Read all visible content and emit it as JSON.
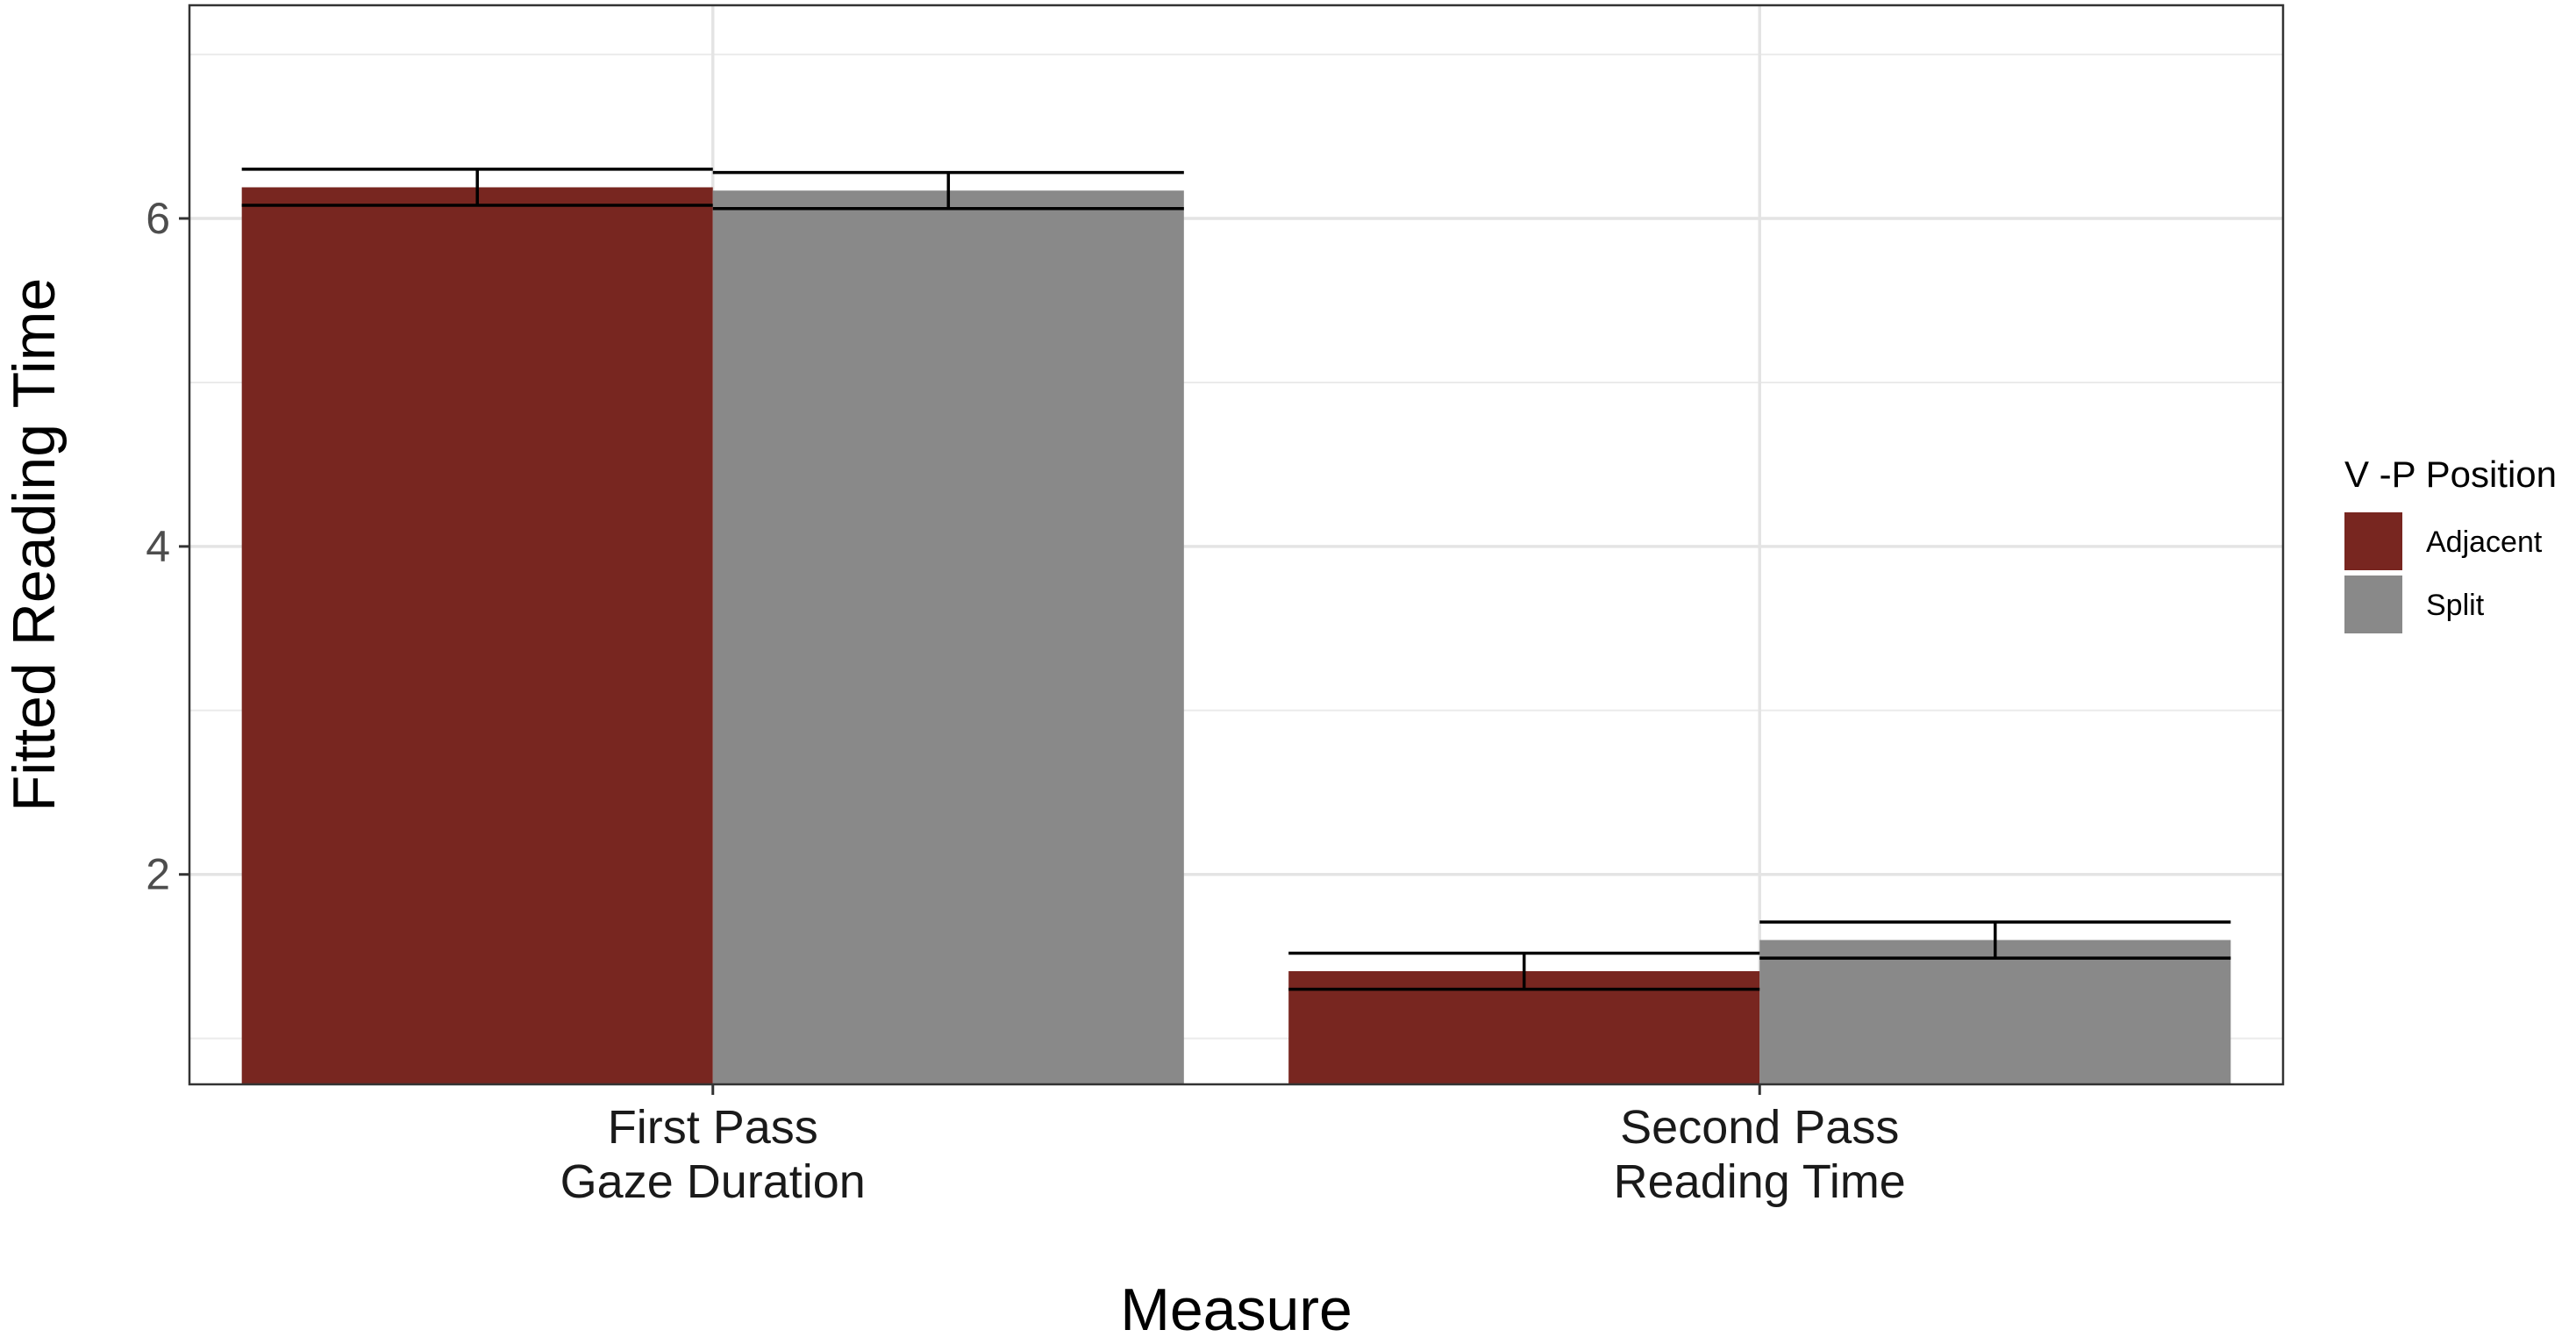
{
  "chart_data": {
    "type": "bar",
    "categories": [
      [
        "First Pass",
        "Gaze Duration"
      ],
      [
        "Second Pass",
        "Reading Time"
      ]
    ],
    "series": [
      {
        "name": "Adjacent",
        "color": "#782620",
        "values": [
          6.19,
          1.41
        ],
        "error_low": [
          6.08,
          1.3
        ],
        "error_high": [
          6.3,
          1.52
        ]
      },
      {
        "name": "Split",
        "color": "#898989",
        "values": [
          6.17,
          1.6
        ],
        "error_low": [
          6.06,
          1.49
        ],
        "error_high": [
          6.28,
          1.71
        ]
      }
    ],
    "xlabel": "Measure",
    "ylabel": "Fitted Reading Time",
    "ylim": [
      0.72,
      7.3
    ],
    "y_ticks": [
      2,
      4,
      6
    ],
    "y_minor_ticks": [
      1,
      3,
      5,
      7
    ],
    "grid": true,
    "legend": {
      "title": "V -P Position",
      "position": "right"
    }
  }
}
